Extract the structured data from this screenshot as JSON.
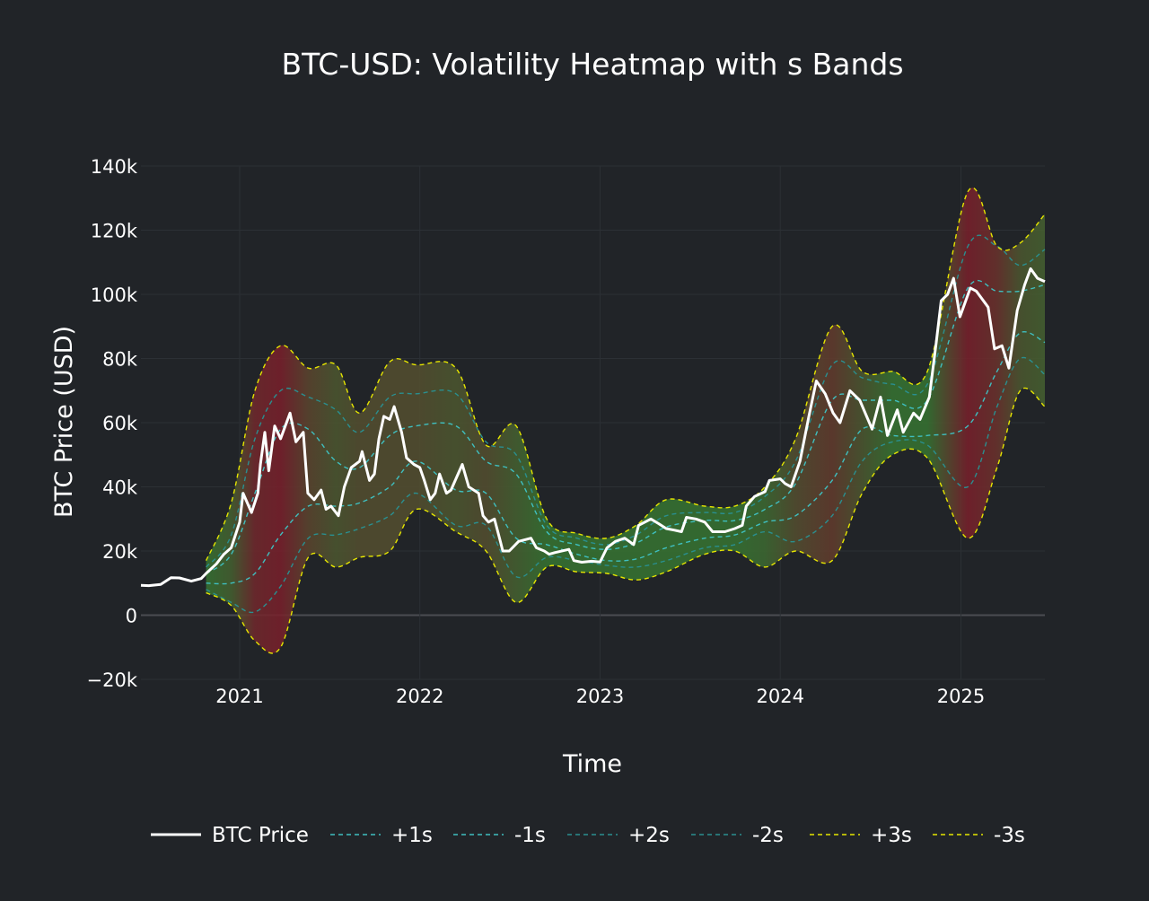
{
  "chart_data": {
    "type": "line",
    "title": "BTC-USD: Volatility Heatmap with s Bands",
    "xlabel": "Time",
    "ylabel": "BTC Price (USD)",
    "xlim": [
      "2020-06-15",
      "2025-06-20"
    ],
    "ylim": [
      -20000,
      140000
    ],
    "x_ticks": [
      {
        "date": "2021-01-01",
        "label": "2021"
      },
      {
        "date": "2022-01-01",
        "label": "2022"
      },
      {
        "date": "2023-01-01",
        "label": "2023"
      },
      {
        "date": "2024-01-01",
        "label": "2024"
      },
      {
        "date": "2025-01-01",
        "label": "2025"
      }
    ],
    "y_ticks": [
      {
        "value": -20000,
        "label": "−20k"
      },
      {
        "value": 0,
        "label": "0"
      },
      {
        "value": 20000,
        "label": "20k"
      },
      {
        "value": 40000,
        "label": "40k"
      },
      {
        "value": 60000,
        "label": "60k"
      },
      {
        "value": 80000,
        "label": "80k"
      },
      {
        "value": 100000,
        "label": "100k"
      },
      {
        "value": 120000,
        "label": "120k"
      },
      {
        "value": 140000,
        "label": "140k"
      }
    ],
    "grid": true,
    "legend_position": "bottom",
    "colors": {
      "price": "#ffffff",
      "band1": "#3fbfbf",
      "band2": "#2a8f8f",
      "band3": "#e6e600",
      "low_vol": "#2e7d32",
      "high_vol": "#7a1f2b"
    },
    "band_dates": [
      "2020-10-25",
      "2020-12-15",
      "2021-02-01",
      "2021-03-25",
      "2021-05-20",
      "2021-07-15",
      "2021-09-01",
      "2021-11-01",
      "2021-12-25",
      "2022-03-15",
      "2022-05-15",
      "2022-07-15",
      "2022-09-15",
      "2022-11-15",
      "2023-01-15",
      "2023-03-15",
      "2023-05-15",
      "2023-08-01",
      "2023-10-01",
      "2023-12-01",
      "2024-02-01",
      "2024-04-15",
      "2024-06-15",
      "2024-08-15",
      "2024-10-25",
      "2025-01-15",
      "2025-03-15",
      "2025-05-01",
      "2025-06-20"
    ],
    "volatility": [
      0.1,
      0.3,
      0.9,
      1.0,
      0.6,
      0.4,
      0.5,
      0.5,
      0.5,
      0.4,
      0.5,
      0.3,
      0.1,
      0.1,
      0.1,
      0.1,
      0.1,
      0.1,
      0.1,
      0.2,
      0.5,
      0.7,
      0.4,
      0.1,
      0.1,
      1.0,
      0.8,
      0.4,
      0.3
    ],
    "series": [
      {
        "name": "BTC Price",
        "style": "solid",
        "x": [
          "2020-06-15",
          "2020-07-01",
          "2020-07-25",
          "2020-08-15",
          "2020-09-01",
          "2020-09-25",
          "2020-10-15",
          "2020-10-25",
          "2020-11-15",
          "2020-11-30",
          "2020-12-15",
          "2021-01-01",
          "2021-01-08",
          "2021-01-25",
          "2021-02-07",
          "2021-02-12",
          "2021-02-21",
          "2021-03-01",
          "2021-03-13",
          "2021-03-25",
          "2021-04-13",
          "2021-04-25",
          "2021-05-10",
          "2021-05-19",
          "2021-06-01",
          "2021-06-15",
          "2021-06-25",
          "2021-07-05",
          "2021-07-20",
          "2021-08-01",
          "2021-08-15",
          "2021-09-01",
          "2021-09-06",
          "2021-09-21",
          "2021-10-01",
          "2021-10-10",
          "2021-10-20",
          "2021-11-01",
          "2021-11-10",
          "2021-11-25",
          "2021-12-05",
          "2021-12-20",
          "2022-01-01",
          "2022-01-10",
          "2022-01-22",
          "2022-02-01",
          "2022-02-10",
          "2022-02-24",
          "2022-03-05",
          "2022-03-28",
          "2022-04-10",
          "2022-04-30",
          "2022-05-09",
          "2022-05-20",
          "2022-06-01",
          "2022-06-13",
          "2022-06-18",
          "2022-07-01",
          "2022-07-20",
          "2022-08-14",
          "2022-08-25",
          "2022-09-10",
          "2022-09-20",
          "2022-10-01",
          "2022-10-30",
          "2022-11-09",
          "2022-11-25",
          "2022-12-15",
          "2023-01-01",
          "2023-01-15",
          "2023-02-01",
          "2023-02-20",
          "2023-03-10",
          "2023-03-20",
          "2023-04-14",
          "2023-04-30",
          "2023-05-15",
          "2023-06-01",
          "2023-06-15",
          "2023-06-25",
          "2023-07-14",
          "2023-08-01",
          "2023-08-17",
          "2023-09-01",
          "2023-09-11",
          "2023-10-01",
          "2023-10-16",
          "2023-10-24",
          "2023-11-10",
          "2023-12-01",
          "2023-12-10",
          "2024-01-01",
          "2024-01-11",
          "2024-01-23",
          "2024-02-10",
          "2024-02-28",
          "2024-03-14",
          "2024-04-01",
          "2024-04-17",
          "2024-05-01",
          "2024-05-21",
          "2024-06-10",
          "2024-07-05",
          "2024-07-22",
          "2024-08-05",
          "2024-08-25",
          "2024-09-06",
          "2024-09-27",
          "2024-10-10",
          "2024-10-29",
          "2024-11-12",
          "2024-11-22",
          "2024-12-05",
          "2024-12-17",
          "2024-12-30",
          "2025-01-20",
          "2025-02-01",
          "2025-02-25",
          "2025-03-10",
          "2025-03-25",
          "2025-04-08",
          "2025-04-25",
          "2025-05-10",
          "2025-05-22",
          "2025-06-05",
          "2025-06-20"
        ],
        "values": [
          9300,
          9200,
          9600,
          11700,
          11600,
          10600,
          11400,
          13000,
          16000,
          19000,
          21000,
          29000,
          38000,
          32000,
          38000,
          47000,
          57000,
          45000,
          59000,
          55000,
          63000,
          54000,
          57000,
          38000,
          36000,
          39000,
          33000,
          34000,
          31000,
          40000,
          46000,
          48000,
          51000,
          42000,
          44000,
          55000,
          62000,
          61000,
          65000,
          57000,
          49000,
          47000,
          46000,
          42000,
          36000,
          38000,
          44000,
          38000,
          39000,
          47000,
          40000,
          38000,
          31000,
          29000,
          30000,
          23000,
          20000,
          20000,
          23000,
          24000,
          21000,
          20000,
          19000,
          19500,
          20500,
          17000,
          16500,
          16800,
          16600,
          21000,
          23000,
          24000,
          22000,
          28000,
          30000,
          28500,
          27000,
          26500,
          26000,
          30500,
          30000,
          29000,
          26000,
          26000,
          26000,
          27000,
          28000,
          34000,
          37000,
          38500,
          42000,
          42500,
          41000,
          40000,
          48000,
          62000,
          73000,
          69000,
          63000,
          60000,
          70000,
          67000,
          58000,
          68000,
          56000,
          64000,
          57000,
          63000,
          61000,
          68000,
          85000,
          98000,
          100000,
          105000,
          93000,
          102000,
          101000,
          96000,
          83000,
          84000,
          77000,
          95000,
          103000,
          108000,
          105000,
          104000
        ]
      },
      {
        "name": "+1s",
        "style": "dash",
        "x": [
          "2020-10-25",
          "2020-12-15",
          "2021-02-01",
          "2021-03-25",
          "2021-05-20",
          "2021-07-15",
          "2021-09-01",
          "2021-11-01",
          "2021-12-25",
          "2022-03-15",
          "2022-05-15",
          "2022-07-15",
          "2022-09-15",
          "2022-11-15",
          "2023-01-15",
          "2023-03-15",
          "2023-05-15",
          "2023-08-01",
          "2023-10-01",
          "2023-12-01",
          "2024-02-01",
          "2024-04-15",
          "2024-06-15",
          "2024-08-15",
          "2024-10-25",
          "2025-01-15",
          "2025-03-15",
          "2025-05-01",
          "2025-06-20"
        ],
        "values": [
          13000,
          19000,
          38000,
          58000,
          58000,
          48000,
          46000,
          56000,
          59000,
          59000,
          48000,
          44000,
          26000,
          22000,
          20500,
          22500,
          27500,
          29500,
          29500,
          33000,
          41000,
          67000,
          67000,
          67000,
          67000,
          102000,
          101000,
          101000,
          103000
        ]
      },
      {
        "name": "-1s",
        "style": "dash",
        "x": [
          "2020-10-25",
          "2020-12-15",
          "2021-02-01",
          "2021-03-25",
          "2021-05-20",
          "2021-07-15",
          "2021-09-01",
          "2021-11-01",
          "2021-12-25",
          "2022-03-15",
          "2022-05-15",
          "2022-07-15",
          "2022-09-15",
          "2022-11-15",
          "2023-01-15",
          "2023-03-15",
          "2023-05-15",
          "2023-08-01",
          "2023-10-01",
          "2023-12-01",
          "2024-02-01",
          "2024-04-15",
          "2024-06-15",
          "2024-08-15",
          "2024-10-25",
          "2025-01-15",
          "2025-03-15",
          "2025-05-01",
          "2025-06-20"
        ],
        "values": [
          10000,
          10000,
          13000,
          25000,
          34000,
          34000,
          35000,
          40000,
          48000,
          39000,
          38000,
          24000,
          22000,
          19000,
          17000,
          17500,
          21000,
          24000,
          25000,
          29000,
          31000,
          42000,
          58000,
          56000,
          56000,
          59000,
          76000,
          88000,
          85000
        ]
      },
      {
        "name": "+2s",
        "style": "dash",
        "x": [
          "2020-10-25",
          "2020-12-15",
          "2021-02-01",
          "2021-03-25",
          "2021-05-20",
          "2021-07-15",
          "2021-09-01",
          "2021-11-01",
          "2021-12-25",
          "2022-03-15",
          "2022-05-15",
          "2022-07-15",
          "2022-09-15",
          "2022-11-15",
          "2023-01-15",
          "2023-03-15",
          "2023-05-15",
          "2023-08-01",
          "2023-10-01",
          "2023-12-01",
          "2024-02-01",
          "2024-04-15",
          "2024-06-15",
          "2024-08-15",
          "2024-10-25",
          "2025-01-15",
          "2025-03-15",
          "2025-05-01",
          "2025-06-20"
        ],
        "values": [
          15000,
          25000,
          55000,
          70000,
          68000,
          64000,
          57000,
          68000,
          69000,
          69000,
          54000,
          50000,
          28000,
          24000,
          22000,
          25000,
          31000,
          32000,
          32000,
          37000,
          48000,
          78000,
          74000,
          72000,
          72000,
          115000,
          115000,
          109000,
          114000
        ]
      },
      {
        "name": "-2s",
        "style": "dash",
        "x": [
          "2020-10-25",
          "2020-12-15",
          "2021-02-01",
          "2021-03-25",
          "2021-05-20",
          "2021-07-15",
          "2021-09-01",
          "2021-11-01",
          "2021-12-25",
          "2022-03-15",
          "2022-05-15",
          "2022-07-15",
          "2022-09-15",
          "2022-11-15",
          "2023-01-15",
          "2023-03-15",
          "2023-05-15",
          "2023-08-01",
          "2023-10-01",
          "2023-12-01",
          "2024-02-01",
          "2024-04-15",
          "2024-06-15",
          "2024-08-15",
          "2024-10-25",
          "2025-01-15",
          "2025-03-15",
          "2025-05-01",
          "2025-06-20"
        ],
        "values": [
          8000,
          4000,
          1000,
          9000,
          24000,
          25000,
          27000,
          31000,
          38000,
          28000,
          28000,
          12000,
          18000,
          17000,
          15500,
          15000,
          17000,
          21000,
          22000,
          26000,
          23000,
          31000,
          48000,
          54000,
          53000,
          40000,
          65000,
          80000,
          75000
        ]
      },
      {
        "name": "+3s",
        "style": "dash",
        "x": [
          "2020-10-25",
          "2020-12-15",
          "2021-02-01",
          "2021-03-25",
          "2021-05-20",
          "2021-07-15",
          "2021-09-01",
          "2021-11-01",
          "2021-12-25",
          "2022-03-15",
          "2022-05-15",
          "2022-07-15",
          "2022-09-15",
          "2022-11-15",
          "2023-01-15",
          "2023-03-15",
          "2023-05-15",
          "2023-08-01",
          "2023-10-01",
          "2023-12-01",
          "2024-02-01",
          "2024-04-15",
          "2024-06-15",
          "2024-08-15",
          "2024-10-25",
          "2025-01-15",
          "2025-03-15",
          "2025-05-01",
          "2025-06-20"
        ],
        "values": [
          17000,
          35000,
          70000,
          84000,
          77000,
          78000,
          63000,
          79000,
          78000,
          77000,
          53000,
          59000,
          30000,
          25500,
          24000,
          28000,
          36000,
          34000,
          34000,
          40000,
          55000,
          90000,
          76000,
          76000,
          76000,
          132000,
          115000,
          116000,
          125000
        ]
      },
      {
        "name": "-3s",
        "style": "dash",
        "x": [
          "2020-10-25",
          "2020-12-15",
          "2021-02-01",
          "2021-03-25",
          "2021-05-20",
          "2021-07-15",
          "2021-09-01",
          "2021-11-01",
          "2021-12-25",
          "2022-03-15",
          "2022-05-15",
          "2022-07-15",
          "2022-09-15",
          "2022-11-15",
          "2023-01-15",
          "2023-03-15",
          "2023-05-15",
          "2023-08-01",
          "2023-10-01",
          "2023-12-01",
          "2024-02-01",
          "2024-04-15",
          "2024-06-15",
          "2024-08-15",
          "2024-10-25",
          "2025-01-15",
          "2025-03-15",
          "2025-05-01",
          "2025-06-20"
        ],
        "values": [
          7000,
          3000,
          -8000,
          -10000,
          18000,
          15000,
          18000,
          20000,
          33000,
          26000,
          20000,
          4000,
          15000,
          13500,
          13000,
          11000,
          13500,
          19000,
          20000,
          15000,
          20000,
          17000,
          38000,
          50000,
          49000,
          24000,
          46000,
          70000,
          65000
        ]
      }
    ]
  }
}
